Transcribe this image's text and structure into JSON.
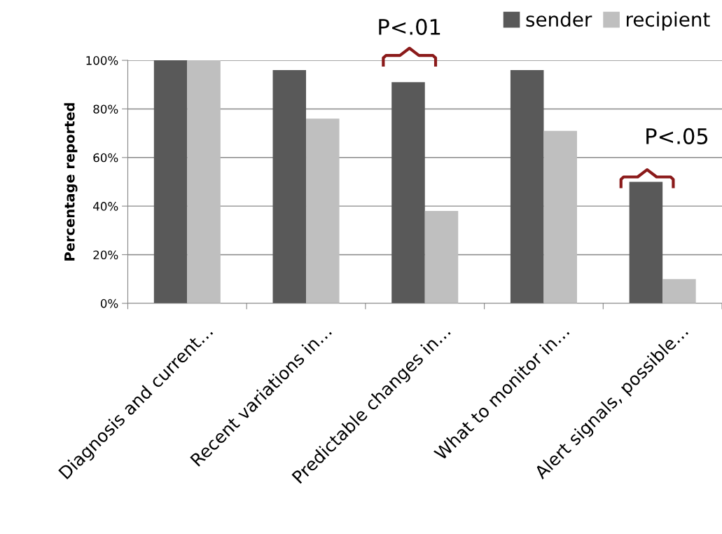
{
  "chart_data": {
    "type": "bar",
    "categories": [
      "Diagnosis and current…",
      "Recent variations in…",
      "Predictable changes in…",
      "What to monitor in…",
      "Alert signals, possible…"
    ],
    "series": [
      {
        "name": "sender",
        "color": "#595959",
        "values": [
          100,
          96,
          91,
          96,
          50
        ]
      },
      {
        "name": "recipient",
        "color": "#bfbfbf",
        "values": [
          100,
          76,
          38,
          71,
          10
        ]
      }
    ],
    "ylabel": "Percentage reported",
    "ylim": [
      0,
      100
    ],
    "yticks": [
      {
        "value": 0,
        "label": "0%"
      },
      {
        "value": 20,
        "label": "20%"
      },
      {
        "value": 40,
        "label": "40%"
      },
      {
        "value": 60,
        "label": "60%"
      },
      {
        "value": 80,
        "label": "80%"
      },
      {
        "value": 100,
        "label": "100%"
      }
    ],
    "annotations": [
      "P<.01",
      "P<.05"
    ],
    "grid": "y",
    "legend": "top right"
  }
}
